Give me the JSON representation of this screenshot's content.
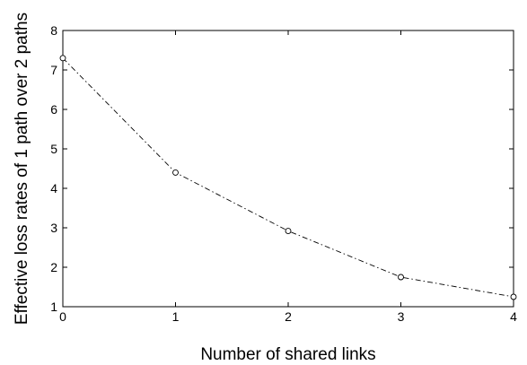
{
  "chart_data": {
    "type": "line",
    "title": "",
    "xlabel": "Number of shared links",
    "ylabel": "Effective loss rates of 1 path over 2 paths",
    "xlim": [
      0,
      4
    ],
    "ylim": [
      1,
      8
    ],
    "x_ticks": [
      0,
      1,
      2,
      3,
      4
    ],
    "y_ticks": [
      1,
      2,
      3,
      4,
      5,
      6,
      7,
      8
    ],
    "grid": false,
    "legend": "none",
    "series": [
      {
        "x": [
          0,
          1,
          2,
          3,
          4
        ],
        "y": [
          7.3,
          4.4,
          2.92,
          1.75,
          1.25
        ],
        "color": "#000000",
        "line_style": "dash-dot",
        "marker": "open-circle"
      }
    ]
  }
}
